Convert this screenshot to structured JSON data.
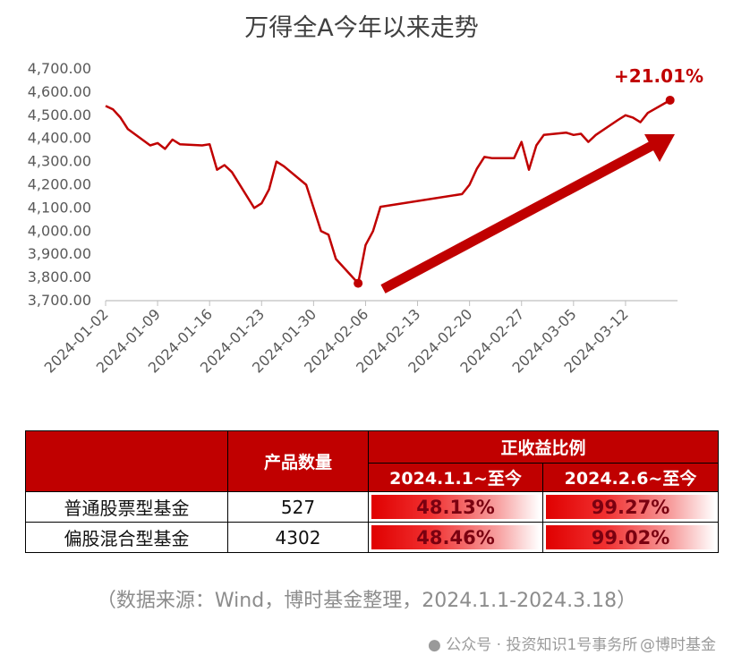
{
  "chart_data": {
    "type": "line",
    "title": "万得全A今年以来走势",
    "xlabel": "",
    "ylabel": "",
    "ylim": [
      3700,
      4700
    ],
    "y_ticks": [
      "4,700.00",
      "4,600.00",
      "4,500.00",
      "4,400.00",
      "4,300.00",
      "4,200.00",
      "4,100.00",
      "4,000.00",
      "3,900.00",
      "3,800.00",
      "3,700.00"
    ],
    "x_ticks": [
      "2024-01-02",
      "2024-01-09",
      "2024-01-16",
      "2024-01-23",
      "2024-01-30",
      "2024-02-06",
      "2024-02-13",
      "2024-02-20",
      "2024-02-27",
      "2024-03-05",
      "2024-03-12"
    ],
    "grid": false,
    "line_color": "#C00000",
    "annotation": "+21.01%",
    "series": [
      {
        "points": [
          [
            "2024-01-02",
            4540
          ],
          [
            "2024-01-03",
            4525
          ],
          [
            "2024-01-04",
            4490
          ],
          [
            "2024-01-05",
            4440
          ],
          [
            "2024-01-08",
            4370
          ],
          [
            "2024-01-09",
            4380
          ],
          [
            "2024-01-10",
            4355
          ],
          [
            "2024-01-11",
            4395
          ],
          [
            "2024-01-12",
            4375
          ],
          [
            "2024-01-15",
            4370
          ],
          [
            "2024-01-16",
            4375
          ],
          [
            "2024-01-17",
            4265
          ],
          [
            "2024-01-18",
            4285
          ],
          [
            "2024-01-19",
            4255
          ],
          [
            "2024-01-22",
            4100
          ],
          [
            "2024-01-23",
            4120
          ],
          [
            "2024-01-24",
            4180
          ],
          [
            "2024-01-25",
            4300
          ],
          [
            "2024-01-26",
            4280
          ],
          [
            "2024-01-29",
            4200
          ],
          [
            "2024-01-30",
            4100
          ],
          [
            "2024-01-31",
            4000
          ],
          [
            "2024-02-01",
            3985
          ],
          [
            "2024-02-02",
            3880
          ],
          [
            "2024-02-05",
            3775
          ],
          [
            "2024-02-06",
            3940
          ],
          [
            "2024-02-07",
            4000
          ],
          [
            "2024-02-08",
            4105
          ],
          [
            "2024-02-19",
            4160
          ],
          [
            "2024-02-20",
            4200
          ],
          [
            "2024-02-21",
            4270
          ],
          [
            "2024-02-22",
            4320
          ],
          [
            "2024-02-23",
            4315
          ],
          [
            "2024-02-26",
            4315
          ],
          [
            "2024-02-27",
            4385
          ],
          [
            "2024-02-28",
            4265
          ],
          [
            "2024-02-29",
            4370
          ],
          [
            "2024-03-01",
            4415
          ],
          [
            "2024-03-04",
            4425
          ],
          [
            "2024-03-05",
            4415
          ],
          [
            "2024-03-06",
            4420
          ],
          [
            "2024-03-07",
            4385
          ],
          [
            "2024-03-08",
            4415
          ],
          [
            "2024-03-11",
            4480
          ],
          [
            "2024-03-12",
            4500
          ],
          [
            "2024-03-13",
            4490
          ],
          [
            "2024-03-14",
            4470
          ],
          [
            "2024-03-15",
            4510
          ],
          [
            "2024-03-18",
            4565
          ]
        ]
      }
    ]
  },
  "table": {
    "header": {
      "count_label": "产品数量",
      "group_label": "正收益比例",
      "col1_label": "2024.1.1~至今",
      "col2_label": "2024.2.6~至今"
    },
    "rows": [
      {
        "name": "普通股票型基金",
        "count": "527",
        "v1": "48.13%",
        "v2": "99.27%"
      },
      {
        "name": "偏股混合型基金",
        "count": "4302",
        "v1": "48.46%",
        "v2": "99.02%"
      }
    ],
    "accent": "#C00000"
  },
  "source_note": "（数据来源：Wind，博时基金整理，2024.1.1-2024.3.18）",
  "watermark": {
    "left": "公众号 · 投资知识1号事务所",
    "right": "@博时基金"
  }
}
